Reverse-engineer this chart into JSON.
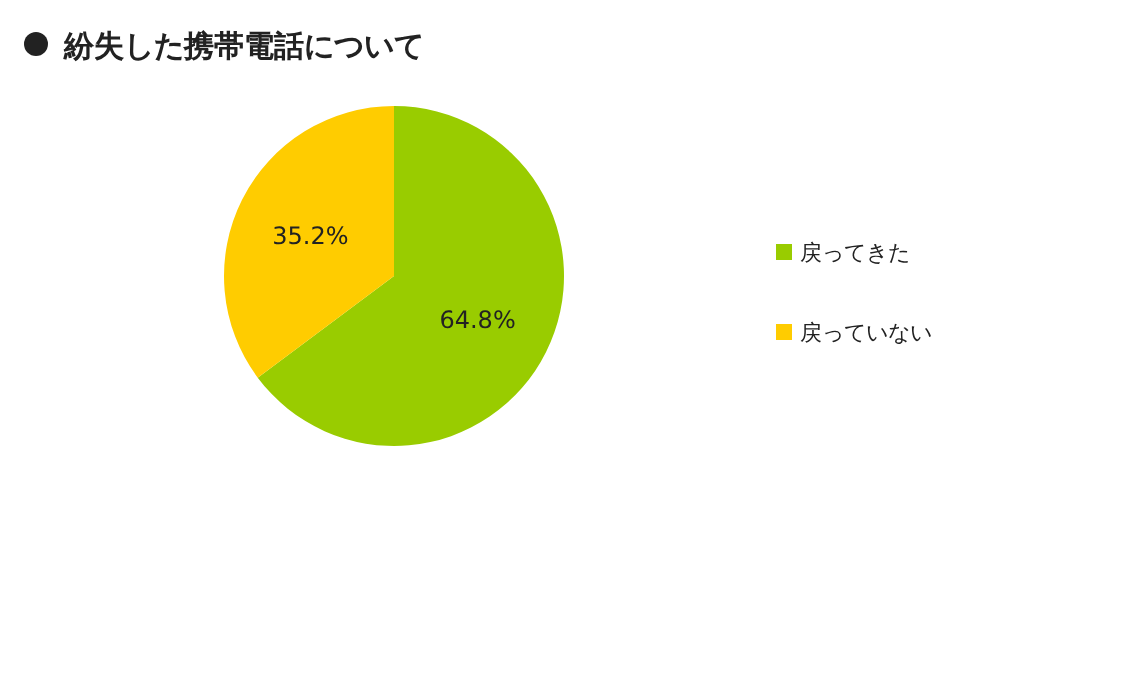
{
  "chart_data": {
    "type": "pie",
    "title": "紛失した携帯電話について",
    "categories": [
      "戻ってきた",
      "戻っていない"
    ],
    "values": [
      64.8,
      35.2
    ],
    "colors": [
      "#99cc00",
      "#ffcc00"
    ],
    "value_labels": [
      "64.8%",
      "35.2%"
    ],
    "legend": "right"
  }
}
